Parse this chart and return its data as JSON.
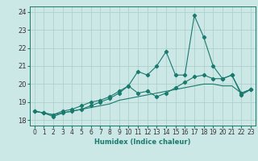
{
  "title": "",
  "xlabel": "Humidex (Indice chaleur)",
  "bg_color": "#cce8e6",
  "grid_color": "#aaccca",
  "line_color": "#1a7a6e",
  "xlim": [
    -0.5,
    23.5
  ],
  "ylim": [
    17.7,
    24.3
  ],
  "yticks": [
    18,
    19,
    20,
    21,
    22,
    23,
    24
  ],
  "xticks": [
    0,
    1,
    2,
    3,
    4,
    5,
    6,
    7,
    8,
    9,
    10,
    11,
    12,
    13,
    14,
    15,
    16,
    17,
    18,
    19,
    20,
    21,
    22,
    23
  ],
  "x": [
    0,
    1,
    2,
    3,
    4,
    5,
    6,
    7,
    8,
    9,
    10,
    11,
    12,
    13,
    14,
    15,
    16,
    17,
    18,
    19,
    20,
    21,
    22,
    23
  ],
  "line1": [
    18.5,
    18.4,
    18.2,
    18.4,
    18.5,
    18.6,
    18.8,
    19.0,
    19.2,
    19.5,
    19.9,
    20.7,
    20.5,
    21.0,
    21.8,
    20.5,
    20.5,
    23.8,
    22.6,
    21.0,
    20.3,
    20.5,
    19.4,
    19.7
  ],
  "line2": [
    18.5,
    18.4,
    18.3,
    18.5,
    18.6,
    18.8,
    19.0,
    19.1,
    19.3,
    19.6,
    19.9,
    19.5,
    19.6,
    19.3,
    19.5,
    19.8,
    20.1,
    20.4,
    20.5,
    20.3,
    20.3,
    20.5,
    19.5,
    19.7
  ],
  "line3": [
    18.5,
    18.4,
    18.3,
    18.4,
    18.5,
    18.6,
    18.7,
    18.8,
    18.9,
    19.1,
    19.2,
    19.3,
    19.4,
    19.5,
    19.6,
    19.7,
    19.8,
    19.9,
    20.0,
    20.0,
    19.9,
    19.9,
    19.5,
    19.7
  ],
  "xlabel_fontsize": 6.0,
  "tick_fontsize": 5.5,
  "ytick_fontsize": 6.0
}
